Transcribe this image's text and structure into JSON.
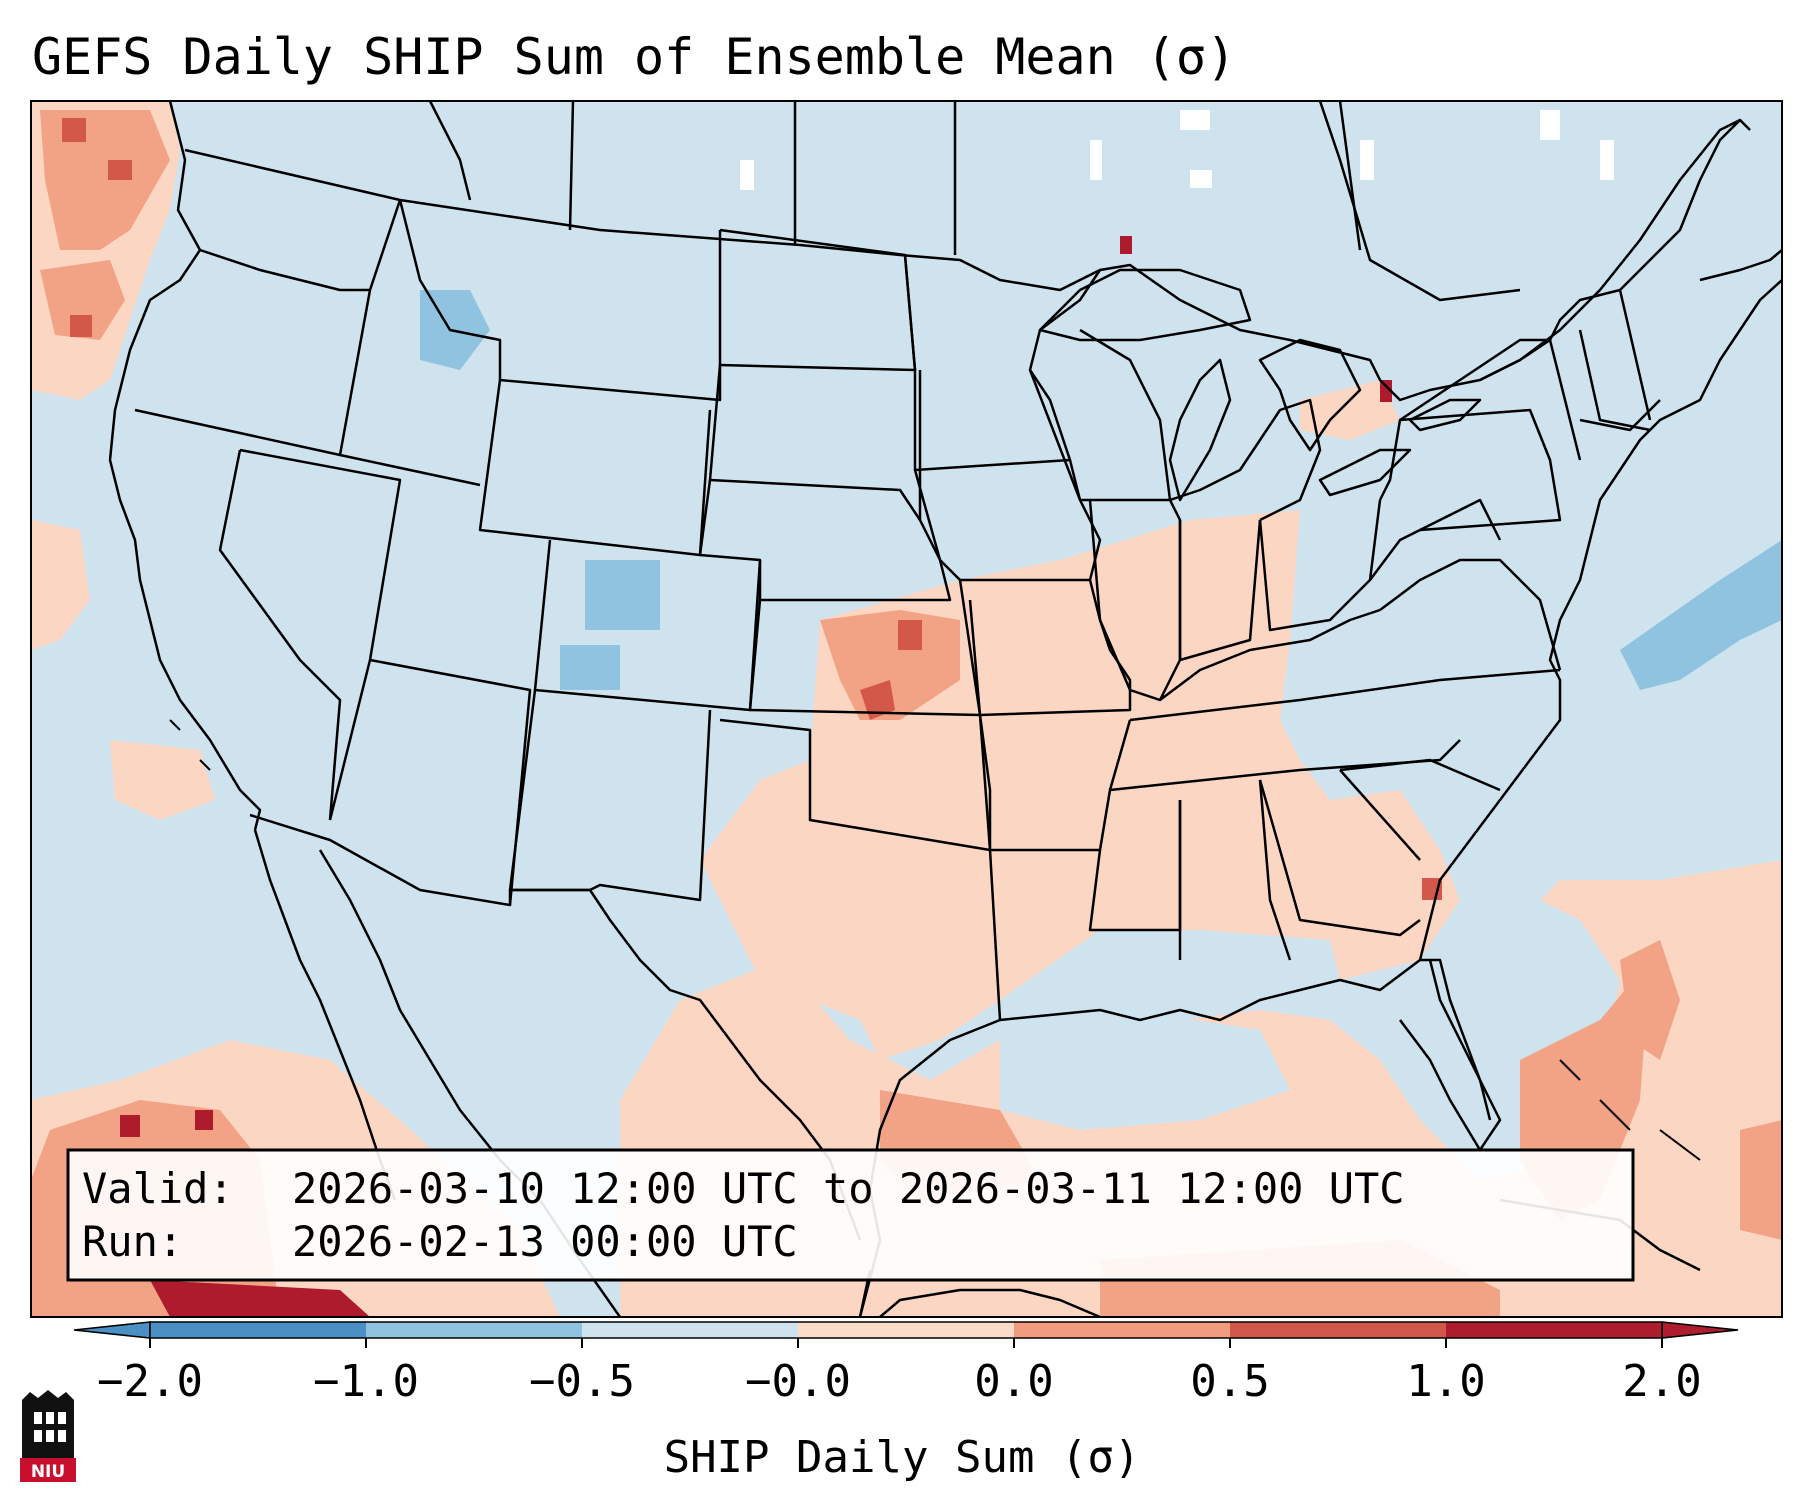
{
  "title": "GEFS Daily SHIP Sum of Ensemble Mean (σ)",
  "info_box": {
    "valid_label": "Valid:",
    "valid_text": "2026-03-10 12:00 UTC to 2026-03-11 12:00 UTC",
    "run_label": "Run:",
    "run_text": "2026-02-13 00:00 UTC"
  },
  "colorbar": {
    "label": "SHIP Daily Sum (σ)",
    "ticks": [
      "−2.0",
      "−1.0",
      "−0.5",
      "−0.0",
      "0.0",
      "0.5",
      "1.0",
      "2.0"
    ],
    "bin_colors": [
      "#4a90c4",
      "#8fc3df",
      "#cfe3ef",
      "#f1f5f8",
      "#fbdcc9",
      "#f19c7f",
      "#d2574b",
      "#ae1d2d"
    ]
  },
  "map_colors": {
    "background": "#cfe3ef",
    "light_orange": "#fbd6c3",
    "orange": "#f2a285",
    "red": "#d3584a",
    "dark_red": "#ad1b2c",
    "light_blue": "#8fc3df",
    "white": "#ffffff"
  },
  "logo": {
    "text": "NIU",
    "icon": "niu-tower-logo"
  }
}
